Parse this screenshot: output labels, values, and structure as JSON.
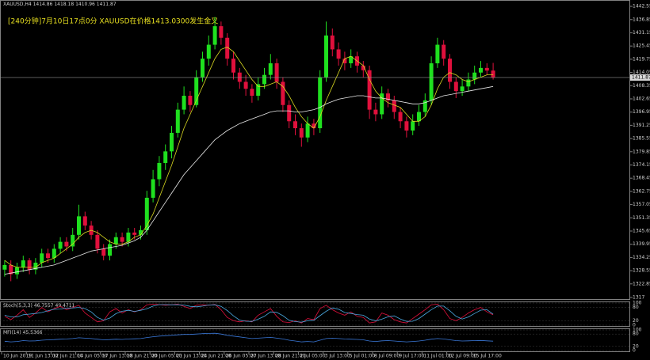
{
  "chart_data": {
    "type": "candlestick",
    "symbol": "XAUUSD,H4",
    "signal_text": "[240分钟]7月10日17点0分 XAUUSD在价格1413.0300发生金叉",
    "bull_color": "#1fe01f",
    "bear_color": "#e0103c",
    "fast_color": "#d8d820",
    "slow_color": "#e8e8e8",
    "ylim": [
      1316.3,
      1445.3
    ],
    "yticks": [
      1442.55,
      1436.85,
      1431.15,
      1425.45,
      1419.75,
      1414.05,
      1408.35,
      1402.65,
      1396.95,
      1391.25,
      1385.55,
      1379.85,
      1374.15,
      1368.45,
      1362.75,
      1357.05,
      1351.35,
      1345.65,
      1339.95,
      1334.25,
      1328.55,
      1322.85,
      1317
    ],
    "categories": [
      "10 Jun 2019",
      null,
      null,
      null,
      "11 Jun 13:00",
      null,
      null,
      null,
      "12 Jun 21:00",
      null,
      null,
      null,
      "14 Jun 05:00",
      null,
      null,
      null,
      "17 Jun 13:00",
      null,
      null,
      null,
      "18 Jun 21:00",
      null,
      null,
      null,
      "20 Jun 05:00",
      null,
      null,
      null,
      "21 Jun 13:00",
      null,
      null,
      null,
      "24 Jun 21:00",
      null,
      null,
      null,
      "26 Jun 05:00",
      null,
      null,
      null,
      "27 Jun 13:00",
      null,
      null,
      null,
      "28 Jun 21:00",
      null,
      null,
      null,
      "2 Jul 05:00",
      null,
      null,
      null,
      "3 Jul 13:00",
      null,
      null,
      null,
      "5 Jul 01:00",
      null,
      null,
      null,
      "8 Jul 09:00",
      null,
      null,
      null,
      "9 Jul 17:00",
      null,
      null,
      null,
      "11 Jul 01:00",
      null,
      null,
      null,
      "12 Jul 09:00",
      null,
      null,
      null,
      "15 Jul 17:00",
      null,
      null,
      null
    ],
    "candles": [
      [
        1329,
        1333,
        1326,
        1331
      ],
      [
        1331,
        1333,
        1324,
        1327
      ],
      [
        1327,
        1332,
        1325,
        1330
      ],
      [
        1330,
        1335,
        1328,
        1333
      ],
      [
        1333,
        1334,
        1327,
        1329
      ],
      [
        1329,
        1334,
        1327,
        1332
      ],
      [
        1332,
        1338,
        1330,
        1336
      ],
      [
        1336,
        1338,
        1332,
        1334
      ],
      [
        1334,
        1340,
        1332,
        1338
      ],
      [
        1338,
        1343,
        1336,
        1341
      ],
      [
        1341,
        1343,
        1337,
        1339
      ],
      [
        1339,
        1347,
        1337,
        1344
      ],
      [
        1344,
        1357,
        1342,
        1352
      ],
      [
        1352,
        1354,
        1346,
        1348
      ],
      [
        1348,
        1350,
        1342,
        1344
      ],
      [
        1344,
        1346,
        1336,
        1338
      ],
      [
        1338,
        1340,
        1333,
        1335
      ],
      [
        1335,
        1342,
        1333,
        1340
      ],
      [
        1340,
        1345,
        1338,
        1343
      ],
      [
        1343,
        1345,
        1339,
        1341
      ],
      [
        1341,
        1347,
        1339,
        1345
      ],
      [
        1345,
        1347,
        1342,
        1344
      ],
      [
        1344,
        1348,
        1342,
        1346
      ],
      [
        1346,
        1363,
        1344,
        1360
      ],
      [
        1360,
        1372,
        1358,
        1368
      ],
      [
        1368,
        1378,
        1365,
        1375
      ],
      [
        1375,
        1383,
        1372,
        1380
      ],
      [
        1380,
        1391,
        1377,
        1388
      ],
      [
        1388,
        1401,
        1386,
        1398
      ],
      [
        1398,
        1408,
        1396,
        1404
      ],
      [
        1404,
        1406,
        1397,
        1400
      ],
      [
        1400,
        1415,
        1399,
        1412
      ],
      [
        1412,
        1423,
        1410,
        1420
      ],
      [
        1420,
        1430,
        1417,
        1426
      ],
      [
        1426,
        1438,
        1424,
        1434
      ],
      [
        1434,
        1436,
        1426,
        1429
      ],
      [
        1429,
        1431,
        1417,
        1420
      ],
      [
        1420,
        1423,
        1411,
        1414
      ],
      [
        1414,
        1416,
        1407,
        1410
      ],
      [
        1410,
        1413,
        1404,
        1407
      ],
      [
        1407,
        1409,
        1401,
        1404
      ],
      [
        1404,
        1412,
        1402,
        1409
      ],
      [
        1409,
        1416,
        1407,
        1413
      ],
      [
        1413,
        1422,
        1411,
        1418
      ],
      [
        1418,
        1420,
        1407,
        1410
      ],
      [
        1410,
        1412,
        1397,
        1400
      ],
      [
        1400,
        1402,
        1390,
        1393
      ],
      [
        1393,
        1396,
        1387,
        1390
      ],
      [
        1390,
        1392,
        1382,
        1386
      ],
      [
        1386,
        1395,
        1384,
        1392
      ],
      [
        1392,
        1394,
        1387,
        1390
      ],
      [
        1390,
        1415,
        1388,
        1412
      ],
      [
        1412,
        1436,
        1410,
        1430
      ],
      [
        1430,
        1433,
        1421,
        1424
      ],
      [
        1424,
        1427,
        1417,
        1420
      ],
      [
        1420,
        1423,
        1415,
        1418
      ],
      [
        1418,
        1424,
        1416,
        1421
      ],
      [
        1421,
        1423,
        1414,
        1417
      ],
      [
        1417,
        1419,
        1412,
        1415
      ],
      [
        1415,
        1417,
        1394,
        1398
      ],
      [
        1398,
        1401,
        1393,
        1396
      ],
      [
        1396,
        1408,
        1394,
        1405
      ],
      [
        1405,
        1407,
        1399,
        1402
      ],
      [
        1402,
        1404,
        1394,
        1397
      ],
      [
        1397,
        1399,
        1390,
        1393
      ],
      [
        1393,
        1395,
        1386,
        1389
      ],
      [
        1389,
        1396,
        1387,
        1393
      ],
      [
        1393,
        1400,
        1391,
        1397
      ],
      [
        1397,
        1405,
        1395,
        1402
      ],
      [
        1402,
        1421,
        1400,
        1418
      ],
      [
        1418,
        1429,
        1416,
        1426
      ],
      [
        1426,
        1428,
        1417,
        1420
      ],
      [
        1420,
        1422,
        1407,
        1410
      ],
      [
        1410,
        1412,
        1403,
        1406
      ],
      [
        1406,
        1411,
        1404,
        1408
      ],
      [
        1408,
        1414,
        1406,
        1411
      ],
      [
        1411,
        1417,
        1409,
        1414
      ],
      [
        1414,
        1419,
        1412,
        1416
      ],
      [
        1416,
        1418,
        1413,
        1414.86
      ],
      [
        1414.86,
        1418.18,
        1410.96,
        1411.87
      ]
    ],
    "fast_ma": [
      1333,
      1331,
      1330,
      1330,
      1330,
      1330,
      1332,
      1333,
      1334,
      1336,
      1338,
      1340,
      1343,
      1345,
      1346,
      1345,
      1343,
      1341,
      1340,
      1340,
      1341,
      1343,
      1344,
      1348,
      1353,
      1360,
      1367,
      1374,
      1382,
      1390,
      1396,
      1402,
      1408,
      1414,
      1420,
      1424,
      1425,
      1423,
      1419,
      1415,
      1411,
      1408,
      1408,
      1409,
      1410,
      1408,
      1404,
      1399,
      1395,
      1392,
      1390,
      1395,
      1402,
      1408,
      1414,
      1420,
      1421,
      1419,
      1417,
      1411,
      1406,
      1403,
      1401,
      1400,
      1399,
      1396,
      1393,
      1393,
      1395,
      1400,
      1407,
      1412,
      1414,
      1413,
      1411,
      1410,
      1411,
      1412,
      1413,
      1413
    ],
    "slow_ma": [
      1327,
      1327.5,
      1328,
      1328.5,
      1329,
      1329.5,
      1330,
      1330.5,
      1331,
      1332,
      1333,
      1334,
      1335,
      1336,
      1337,
      1337.5,
      1338,
      1338.5,
      1339,
      1339.5,
      1340.5,
      1341.5,
      1343,
      1346,
      1350,
      1354,
      1358,
      1362,
      1366,
      1370,
      1373,
      1376,
      1379,
      1382,
      1385,
      1387,
      1389,
      1390.5,
      1392,
      1393,
      1394,
      1395,
      1396,
      1397,
      1397.5,
      1397.5,
      1397.5,
      1397,
      1397,
      1397.5,
      1398,
      1399,
      1400.5,
      1401.5,
      1402.5,
      1403,
      1403.5,
      1404,
      1404,
      1403.5,
      1403,
      1403,
      1402.5,
      1402,
      1401.5,
      1401,
      1400.5,
      1400.5,
      1401,
      1402,
      1403,
      1404,
      1404.5,
      1405,
      1405.5,
      1406,
      1406.5,
      1407,
      1407.5,
      1408
    ],
    "stoch": {
      "label": "Stoch(5,3,3)",
      "ylim": [
        0,
        100
      ],
      "yticks": [
        100,
        80,
        20,
        0
      ],
      "k_color": "#e0103c",
      "d_color": "#4aa8e0",
      "k": [
        40,
        25,
        45,
        70,
        35,
        55,
        80,
        60,
        75,
        85,
        70,
        80,
        90,
        55,
        35,
        15,
        20,
        60,
        75,
        55,
        70,
        60,
        70,
        92,
        95,
        93,
        90,
        92,
        95,
        85,
        75,
        90,
        92,
        90,
        94,
        70,
        35,
        20,
        15,
        20,
        15,
        45,
        60,
        75,
        40,
        15,
        12,
        20,
        10,
        30,
        25,
        75,
        90,
        70,
        55,
        45,
        60,
        40,
        35,
        10,
        15,
        55,
        45,
        25,
        15,
        10,
        30,
        50,
        70,
        92,
        95,
        70,
        30,
        20,
        35,
        55,
        70,
        80,
        60,
        46.7557
      ],
      "d": [
        45,
        37,
        37,
        47,
        50,
        53,
        57,
        65,
        72,
        73,
        77,
        78,
        80,
        75,
        60,
        35,
        23,
        32,
        52,
        63,
        67,
        62,
        67,
        74,
        86,
        93,
        93,
        92,
        92,
        91,
        85,
        83,
        86,
        91,
        92,
        85,
        66,
        42,
        23,
        18,
        17,
        27,
        40,
        60,
        58,
        43,
        22,
        16,
        14,
        20,
        22,
        43,
        63,
        78,
        72,
        57,
        53,
        48,
        45,
        28,
        20,
        27,
        38,
        42,
        28,
        17,
        18,
        30,
        50,
        70,
        86,
        86,
        65,
        40,
        28,
        37,
        53,
        68,
        70,
        49.4711
      ]
    },
    "mfi": {
      "label": "MFI(14)",
      "ylim": [
        0,
        100
      ],
      "yticks": [
        100,
        80,
        20,
        0
      ],
      "color": "#3a78d8",
      "values": [
        45,
        42,
        44,
        48,
        46,
        47,
        50,
        52,
        53,
        55,
        56,
        58,
        62,
        60,
        58,
        55,
        52,
        53,
        55,
        54,
        56,
        57,
        58,
        63,
        67,
        70,
        72,
        74,
        76,
        78,
        78,
        80,
        82,
        83,
        84,
        80,
        74,
        70,
        66,
        62,
        58,
        60,
        62,
        64,
        60,
        56,
        50,
        46,
        42,
        44,
        42,
        50,
        58,
        60,
        58,
        56,
        55,
        54,
        52,
        46,
        44,
        47,
        48,
        46,
        44,
        42,
        44,
        46,
        50,
        55,
        58,
        56,
        52,
        48,
        46,
        47,
        48,
        49,
        47,
        45.5366
      ]
    }
  }
}
